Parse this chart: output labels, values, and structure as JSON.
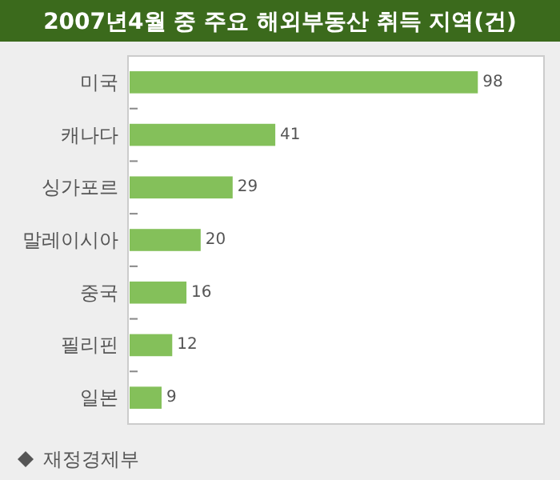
{
  "chart_data": {
    "type": "bar",
    "orientation": "horizontal",
    "title": "2007년4월 중 주요 해외부동산 취득 지역(건)",
    "categories": [
      "미국",
      "캐나다",
      "싱가포르",
      "말레이시아",
      "중국",
      "필리핀",
      "일본"
    ],
    "values": [
      98,
      41,
      29,
      20,
      16,
      12,
      9
    ],
    "color": "#84c05a",
    "data_labels": true,
    "annotations": [
      "재정경제부"
    ]
  }
}
